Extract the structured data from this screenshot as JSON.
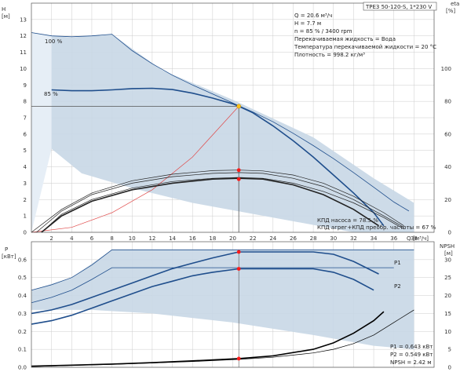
{
  "model": "TPE3 50-120-S, 1*230 V",
  "upper": {
    "y_label": "H",
    "y_unit": "[м]",
    "right_label": "eta",
    "right_unit": "[%]",
    "x_label": "Q",
    "x_unit": "[м³/ч]",
    "info_lines": [
      "Q = 20.6 м³/ч",
      "H = 7.7 м",
      "n = 85 % / 3400 rpm",
      "Перекачиваемая жидкость = Вода",
      "Температура перекачиваемой жидкости = 20 °C",
      "Плотность = 998.2 кг/м³"
    ],
    "curve_labels": [
      "100 %",
      "85 %"
    ],
    "eff_lines": [
      "КПД насоса = 78.5 %",
      "КПД агрег+КПД преобр. частоты = 67 %"
    ]
  },
  "lower": {
    "y_label": "P",
    "y_unit": "[кВт]",
    "right_label": "NPSH",
    "right_unit": "[м]",
    "series_labels": [
      "P1",
      "P2"
    ],
    "info_lines": [
      "P1 = 0.643 кВт",
      "P2 = 0.549 кВт",
      "NPSH = 2.42 м"
    ]
  },
  "colors": {
    "envelope": "#c8d7e6",
    "envelope_light": "#e6eef6",
    "curve": "#1f4e8c",
    "eta": "#222222",
    "system": "#e04a4a",
    "duty_point": "#ffc21a",
    "marker": "#ff1a1a",
    "grid": "#cccccc"
  },
  "chart_data": [
    {
      "type": "line",
      "name_text": "head-and-efficiency",
      "xlabel": "Q",
      "xunit": "[м³/ч]",
      "ylabel": "H",
      "yunit": "[м]",
      "y2label": "eta",
      "y2unit": "[%]",
      "xlim": [
        0,
        40
      ],
      "ylim": [
        0,
        14
      ],
      "y2lim": [
        0,
        140
      ],
      "x_ticks": [
        2,
        4,
        6,
        8,
        10,
        12,
        14,
        16,
        18,
        20,
        22,
        24,
        26,
        28,
        30,
        32,
        34,
        36,
        38
      ],
      "y_ticks": [
        0,
        1,
        2,
        3,
        4,
        5,
        6,
        7,
        8,
        9,
        10,
        11,
        12,
        13
      ],
      "y2_ticks": [
        0,
        20,
        40,
        60,
        80,
        100
      ],
      "envelope": {
        "x": [
          0,
          2,
          4,
          8,
          13,
          20,
          28,
          34,
          38,
          38,
          32,
          24,
          16,
          10,
          5,
          2,
          0
        ],
        "y": [
          12.2,
          12.0,
          11.9,
          12.1,
          9.9,
          8.1,
          5.8,
          3.3,
          1.8,
          0,
          0,
          0.9,
          1.8,
          2.7,
          3.6,
          5.1,
          12.2
        ]
      },
      "series": [
        {
          "name": "100 %",
          "x": [
            0,
            2,
            4,
            6,
            8,
            10,
            12,
            14,
            16,
            18,
            20,
            22,
            24,
            26,
            28,
            30,
            32,
            34,
            36,
            37.5
          ],
          "y": [
            12.2,
            12.0,
            11.95,
            12.0,
            12.1,
            11.1,
            10.3,
            9.6,
            9.0,
            8.45,
            7.9,
            7.35,
            6.75,
            6.05,
            5.3,
            4.5,
            3.65,
            2.75,
            1.85,
            1.3
          ]
        },
        {
          "name": "85 %",
          "x": [
            2,
            4,
            6,
            8,
            10,
            12,
            14,
            16,
            18,
            20,
            20.6,
            22,
            24,
            26,
            28,
            30,
            32,
            34,
            35
          ],
          "y": [
            8.7,
            8.65,
            8.65,
            8.7,
            8.78,
            8.8,
            8.72,
            8.5,
            8.2,
            7.85,
            7.7,
            7.3,
            6.5,
            5.6,
            4.6,
            3.5,
            2.4,
            1.2,
            0.4
          ],
          "dash": false
        },
        {
          "name": "system",
          "x": [
            0,
            4,
            8,
            12,
            16,
            20.6
          ],
          "y": [
            0,
            0.3,
            1.2,
            2.6,
            4.6,
            7.7
          ]
        }
      ],
      "eta_series": [
        {
          "x": [
            0,
            3,
            6,
            10,
            14,
            18,
            20.6,
            23,
            26,
            29,
            32,
            35,
            37
          ],
          "y": [
            0,
            14,
            24,
            31.5,
            35.5,
            37.7,
            38,
            37.5,
            35,
            30,
            22,
            12,
            4
          ]
        },
        {
          "x": [
            1,
            3,
            6,
            10,
            14,
            18,
            20.6,
            23,
            26,
            29,
            32,
            35,
            37
          ],
          "y": [
            0,
            11,
            20,
            27,
            31,
            33,
            33.5,
            33,
            30,
            25,
            18,
            9,
            2
          ]
        },
        {
          "x": [
            0.5,
            3,
            6,
            10,
            14,
            18,
            20.6,
            23,
            26,
            29,
            32,
            35,
            37
          ],
          "y": [
            0,
            13,
            23,
            30,
            34,
            36,
            36.5,
            36,
            33,
            28,
            20,
            10,
            3
          ]
        },
        {
          "x": [
            1,
            3,
            6,
            10,
            14,
            18,
            20.6,
            23,
            26,
            29,
            32,
            34.5
          ],
          "y": [
            0,
            10,
            19,
            26,
            30,
            32.5,
            33,
            32.5,
            29,
            23,
            14,
            4
          ]
        }
      ],
      "duty_point": {
        "x": 20.6,
        "y": 7.7
      },
      "eta_markers": [
        {
          "x": 20.6,
          "y": 78.5
        },
        {
          "x": 20.6,
          "y": 67
        }
      ]
    },
    {
      "type": "line",
      "name_text": "power-and-npsh",
      "ylabel": "P",
      "yunit": "[кВт]",
      "y2label": "NPSH",
      "y2unit": "[м]",
      "xlim": [
        0,
        40
      ],
      "ylim": [
        0,
        0.7
      ],
      "y2lim": [
        0,
        35
      ],
      "y_ticks": [
        0,
        0.1,
        0.2,
        0.3,
        0.4,
        0.5,
        0.6
      ],
      "y2_ticks": [
        0,
        5,
        10,
        15,
        20,
        25,
        30
      ],
      "envelope": {
        "x": [
          0,
          4,
          8,
          20,
          28,
          38,
          38,
          34,
          28,
          20,
          12,
          6,
          2,
          0
        ],
        "y": [
          0.43,
          0.5,
          0.655,
          0.655,
          0.655,
          0.655,
          0.1,
          0.12,
          0.18,
          0.25,
          0.3,
          0.32,
          0.32,
          0.32
        ]
      },
      "series": [
        {
          "name": "P1 100 %",
          "x": [
            0,
            2,
            4,
            6,
            8,
            20,
            30,
            38
          ],
          "y": [
            0.43,
            0.46,
            0.5,
            0.57,
            0.655,
            0.655,
            0.655,
            0.655
          ]
        },
        {
          "name": "P2 100 %",
          "x": [
            0,
            2,
            4,
            6,
            8,
            20,
            30,
            36
          ],
          "y": [
            0.36,
            0.39,
            0.43,
            0.49,
            0.555,
            0.555,
            0.555,
            0.555
          ]
        },
        {
          "name": "P1",
          "x": [
            0,
            2,
            4,
            6,
            8,
            10,
            12,
            14,
            16,
            18,
            20.6,
            22,
            24,
            26,
            28,
            30,
            32,
            34.5
          ],
          "y": [
            0.3,
            0.32,
            0.35,
            0.39,
            0.43,
            0.47,
            0.51,
            0.55,
            0.58,
            0.61,
            0.643,
            0.643,
            0.643,
            0.643,
            0.643,
            0.63,
            0.59,
            0.52
          ]
        },
        {
          "name": "P2",
          "x": [
            0,
            2,
            4,
            6,
            8,
            10,
            12,
            14,
            16,
            18,
            20.6,
            22,
            24,
            26,
            28,
            30,
            32,
            34
          ],
          "y": [
            0.24,
            0.26,
            0.29,
            0.33,
            0.37,
            0.41,
            0.45,
            0.48,
            0.51,
            0.53,
            0.549,
            0.549,
            0.549,
            0.549,
            0.549,
            0.53,
            0.49,
            0.43
          ]
        }
      ],
      "npsh_series": [
        {
          "x": [
            0,
            4,
            8,
            12,
            16,
            20.6,
            24,
            28,
            30,
            32,
            34,
            35
          ],
          "y": [
            0.3,
            0.6,
            0.9,
            1.3,
            1.8,
            2.42,
            3.2,
            5,
            6.8,
            9.5,
            13,
            15.5
          ]
        },
        {
          "x": [
            0,
            4,
            8,
            12,
            16,
            20.6,
            24,
            28,
            30,
            32,
            34,
            36,
            38
          ],
          "y": [
            0.2,
            0.5,
            0.8,
            1.2,
            1.6,
            2.2,
            2.8,
            4,
            5,
            6.6,
            9,
            12.5,
            16
          ]
        }
      ],
      "markers": [
        {
          "x": 20.6,
          "y": 0.643
        },
        {
          "x": 20.6,
          "y": 0.549
        }
      ],
      "npsh_marker": {
        "x": 20.6,
        "y": 2.42
      }
    }
  ]
}
